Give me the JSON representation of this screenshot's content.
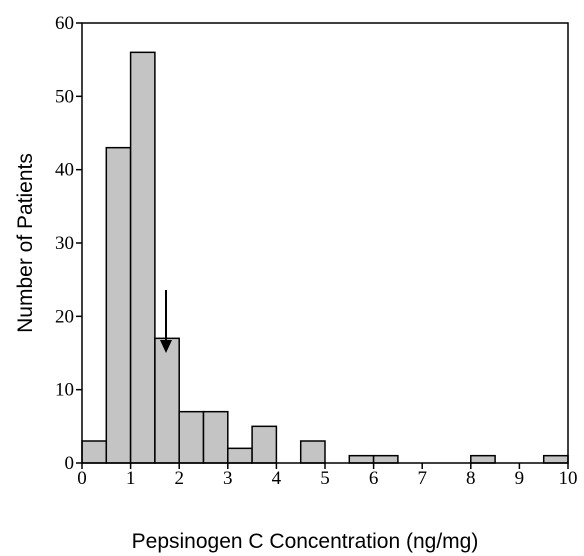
{
  "chart_data": {
    "type": "histogram",
    "xlabel": "Pepsinogen C Concentration (ng/mg)",
    "ylabel": "Number of Patients",
    "bins": [
      0,
      0.5,
      1,
      1.5,
      2,
      2.5,
      3,
      3.5,
      4,
      4.5,
      5,
      5.5,
      6,
      6.5,
      7,
      7.5,
      8,
      8.5,
      9,
      9.5,
      10
    ],
    "values": [
      3,
      43,
      56,
      17,
      7,
      7,
      2,
      5,
      0,
      3,
      0,
      1,
      1,
      0,
      0,
      0,
      1,
      0,
      0,
      1
    ],
    "color": "#c4c4c4",
    "xlim": [
      0,
      10
    ],
    "xticks": [
      0,
      1,
      2,
      3,
      4,
      5,
      6,
      7,
      8,
      9,
      10
    ],
    "ylim": [
      0,
      60
    ],
    "yticks": [
      0,
      10,
      20,
      30,
      40,
      50,
      60
    ]
  }
}
